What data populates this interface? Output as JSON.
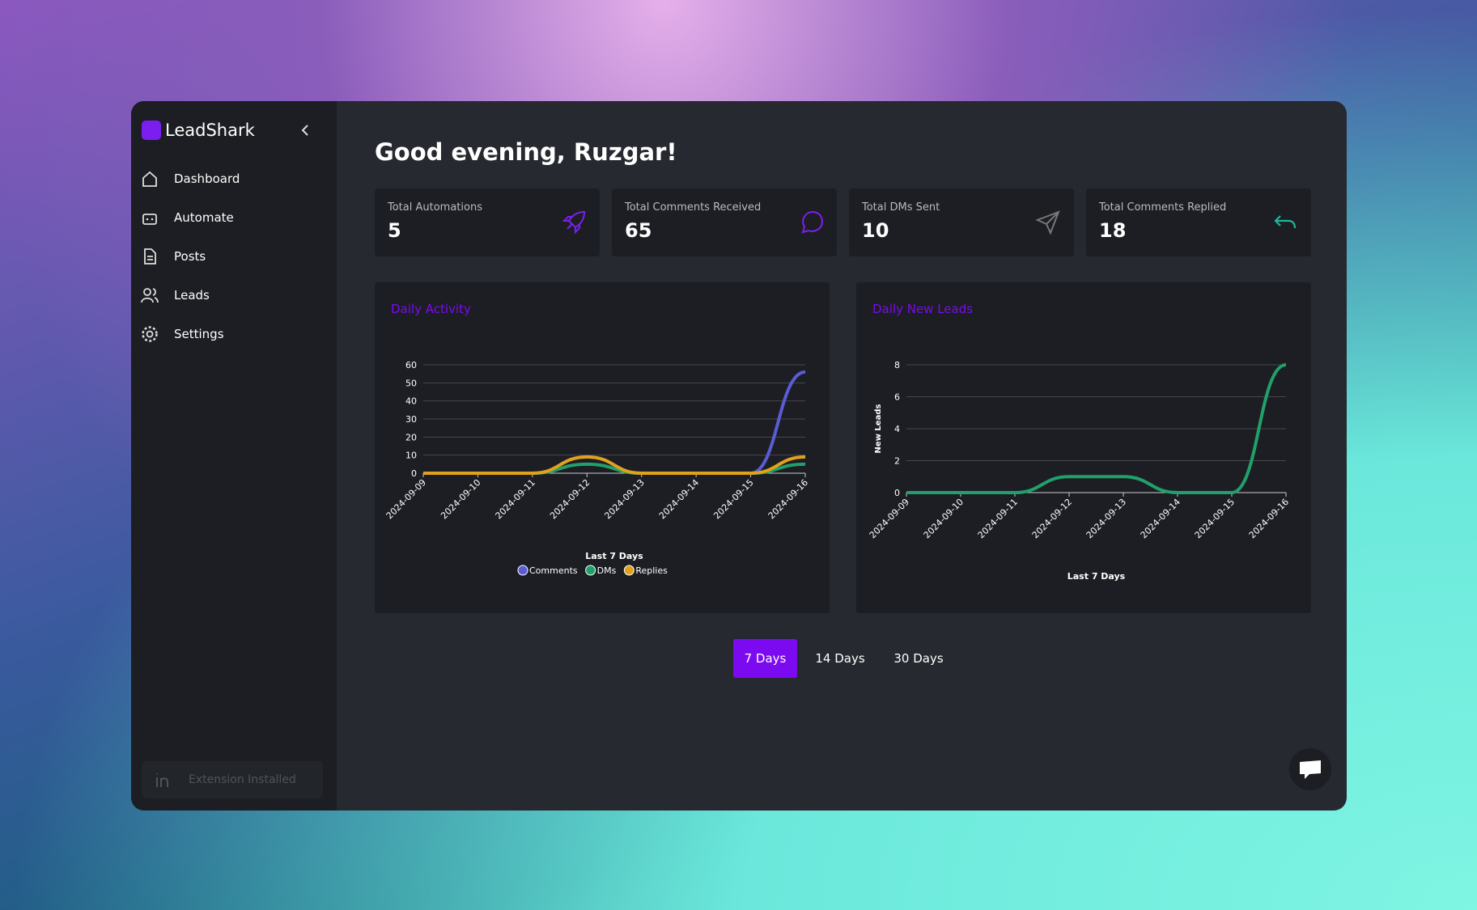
{
  "brand": "LeadShark",
  "nav": [
    "Dashboard",
    "Automate",
    "Posts",
    "Leads",
    "Settings"
  ],
  "greeting": "Good evening, Ruzgar!",
  "stats": [
    {
      "label": "Total Automations",
      "value": 5
    },
    {
      "label": "Total Comments Received",
      "value": 65
    },
    {
      "label": "Total DMs Sent",
      "value": 10
    },
    {
      "label": "Total Comments Replied",
      "value": 18
    }
  ],
  "chart_data": [
    {
      "type": "line",
      "title": "Daily Activity",
      "xlabel": "Last 7 Days",
      "legend": "bottom",
      "grid": true,
      "categories": [
        "2024-09-09",
        "2024-09-10",
        "2024-09-11",
        "2024-09-12",
        "2024-09-13",
        "2024-09-14",
        "2024-09-15",
        "2024-09-16"
      ],
      "series": [
        {
          "name": "Comments",
          "color": "#5b5bd6",
          "values": [
            0,
            0,
            0,
            9,
            0,
            0,
            0,
            56
          ]
        },
        {
          "name": "DMs",
          "color": "#22a06b",
          "values": [
            0,
            0,
            0,
            5,
            0,
            0,
            0,
            5
          ]
        },
        {
          "name": "Replies",
          "color": "#e2a11b",
          "values": [
            0,
            0,
            0,
            9,
            0,
            0,
            0,
            9
          ]
        }
      ],
      "ylim": [
        0,
        60
      ],
      "yticks": [
        0,
        10,
        20,
        30,
        40,
        50,
        60
      ]
    },
    {
      "type": "line",
      "title": "Daily New Leads",
      "xlabel": "Last 7 Days",
      "ylabel": "New Leads",
      "grid": true,
      "categories": [
        "2024-09-09",
        "2024-09-10",
        "2024-09-11",
        "2024-09-12",
        "2024-09-13",
        "2024-09-14",
        "2024-09-15",
        "2024-09-16"
      ],
      "values": [
        0,
        0,
        0,
        1,
        1,
        0,
        0,
        8
      ],
      "color": "#22a06b",
      "ylim": [
        0,
        8
      ],
      "yticks": [
        0,
        2,
        4,
        6,
        8
      ]
    }
  ],
  "ranges": [
    "7 Days",
    "14 Days",
    "30 Days"
  ],
  "extension": "Extension Installed"
}
